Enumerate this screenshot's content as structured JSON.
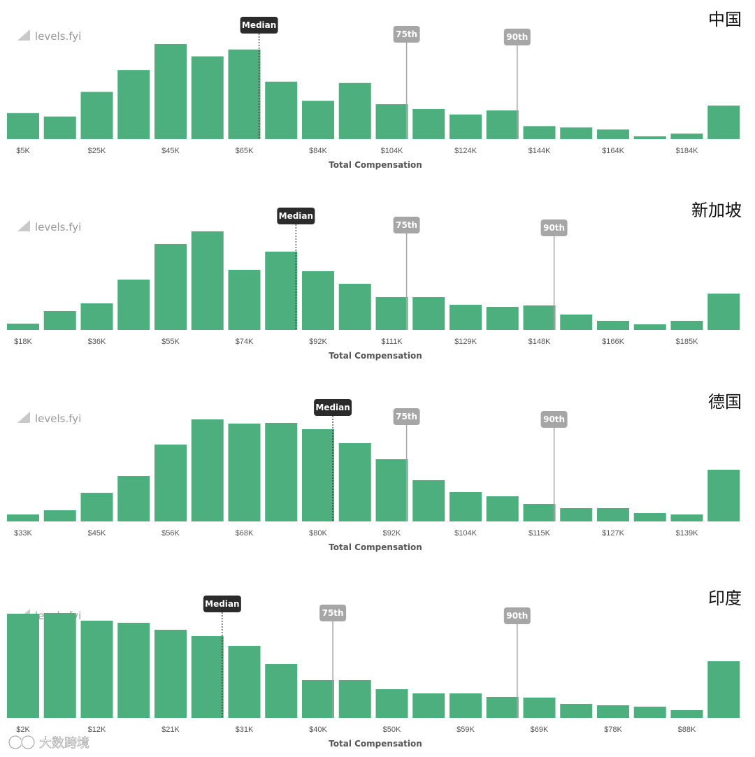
{
  "logo_text": "levels.fyi",
  "watermark_text": "大数跨境",
  "colors": {
    "bar": "#4caf7d",
    "median": "#2b2b2b",
    "percentile": "#a6a6a6",
    "logo": "#c9c9c9"
  },
  "chart_data": [
    {
      "type": "bar",
      "country": "中国",
      "xlabel": "Total Compensation",
      "tick_labels": [
        "$5K",
        "$25K",
        "$45K",
        "$65K",
        "$84K",
        "$104K",
        "$124K",
        "$144K",
        "$164K",
        "$184K"
      ],
      "tick_bins": [
        0,
        2,
        4,
        6,
        8,
        10,
        12,
        14,
        16,
        18
      ],
      "values": [
        38,
        33,
        69,
        101,
        139,
        121,
        131,
        84,
        56,
        82,
        51,
        44,
        36,
        42,
        19,
        17,
        14,
        4,
        8,
        49
      ],
      "ylim": [
        0,
        140
      ],
      "markers": [
        {
          "label": "Median",
          "bin": 6.4,
          "kind": "median"
        },
        {
          "label": "75th",
          "bin": 10.4,
          "kind": "percentile"
        },
        {
          "label": "90th",
          "bin": 13.4,
          "kind": "percentile"
        }
      ]
    },
    {
      "type": "bar",
      "country": "新加坡",
      "xlabel": "Total Compensation",
      "tick_labels": [
        "$18K",
        "$36K",
        "$55K",
        "$74K",
        "$92K",
        "$111K",
        "$129K",
        "$148K",
        "$166K",
        "$185K"
      ],
      "tick_bins": [
        0,
        2,
        4,
        6,
        8,
        10,
        12,
        14,
        16,
        18
      ],
      "values": [
        9,
        27,
        38,
        72,
        123,
        141,
        86,
        112,
        84,
        66,
        47,
        47,
        36,
        33,
        35,
        22,
        13,
        8,
        13,
        52
      ],
      "ylim": [
        0,
        141
      ],
      "markers": [
        {
          "label": "Median",
          "bin": 7.4,
          "kind": "median"
        },
        {
          "label": "75th",
          "bin": 10.4,
          "kind": "percentile"
        },
        {
          "label": "90th",
          "bin": 14.4,
          "kind": "percentile"
        }
      ]
    },
    {
      "type": "bar",
      "country": "德国",
      "xlabel": "Total Compensation",
      "tick_labels": [
        "$33K",
        "$45K",
        "$56K",
        "$68K",
        "$80K",
        "$92K",
        "$104K",
        "$115K",
        "$127K",
        "$139K"
      ],
      "tick_bins": [
        0,
        2,
        4,
        6,
        8,
        10,
        12,
        14,
        16,
        18
      ],
      "values": [
        10,
        16,
        41,
        65,
        110,
        146,
        140,
        141,
        132,
        112,
        89,
        59,
        42,
        36,
        25,
        19,
        19,
        12,
        10,
        74
      ],
      "ylim": [
        0,
        146
      ],
      "markers": [
        {
          "label": "Median",
          "bin": 8.4,
          "kind": "median"
        },
        {
          "label": "75th",
          "bin": 10.4,
          "kind": "percentile"
        },
        {
          "label": "90th",
          "bin": 14.4,
          "kind": "percentile"
        }
      ]
    },
    {
      "type": "bar",
      "country": "印度",
      "xlabel": "Total Compensation",
      "tick_labels": [
        "$2K",
        "$12K",
        "$21K",
        "$31K",
        "$40K",
        "$50K",
        "$59K",
        "$69K",
        "$78K",
        "$88K"
      ],
      "tick_bins": [
        0,
        2,
        4,
        6,
        8,
        10,
        12,
        14,
        16,
        18
      ],
      "values": [
        149,
        150,
        139,
        136,
        126,
        117,
        103,
        77,
        54,
        54,
        41,
        35,
        35,
        30,
        29,
        20,
        18,
        16,
        11,
        81
      ],
      "ylim": [
        0,
        150
      ],
      "markers": [
        {
          "label": "Median",
          "bin": 5.4,
          "kind": "median"
        },
        {
          "label": "75th",
          "bin": 8.4,
          "kind": "percentile"
        },
        {
          "label": "90th",
          "bin": 13.4,
          "kind": "percentile"
        }
      ]
    }
  ]
}
